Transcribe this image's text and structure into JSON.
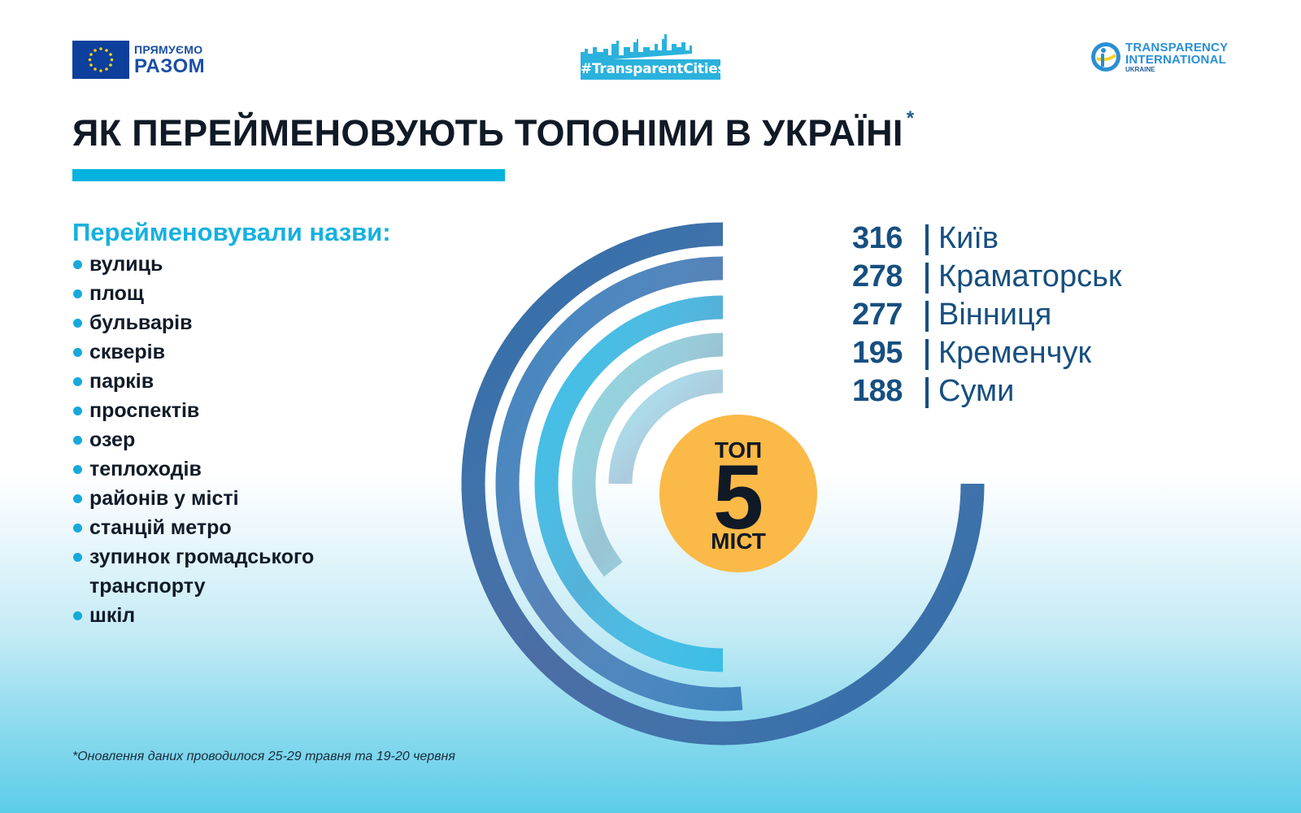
{
  "header": {
    "eu_logo": {
      "line1": "ПРЯМУЄМО",
      "line2": "РАЗОМ",
      "icon": "eu-flag-icon"
    },
    "tc_logo": {
      "tag": "#TransparentCities",
      "icon": "city-skyline-icon"
    },
    "ti_logo": {
      "line1": "TRANSPARENCY",
      "line2": "INTERNATIONAL",
      "line3": "UKRAINE",
      "icon": "ti-figure-icon"
    }
  },
  "title": {
    "text": "ЯК ПЕРЕЙМЕНОВУЮТЬ ТОПОНІМИ В УКРАЇНІ",
    "footnote_mark": "*"
  },
  "types": {
    "heading": "Перейменовували назви:",
    "items": [
      "вулиць",
      "площ",
      "бульварів",
      "скверів",
      "парків",
      "проспектів",
      "озер",
      "теплоходів",
      "районів у місті",
      "станцій метро",
      "зупинок громадського",
      "транспорту",
      "шкіл"
    ]
  },
  "badge": {
    "top": "ТОП",
    "number": "5",
    "bottom": "МІСТ"
  },
  "colors": {
    "accent": "#04b3df",
    "title": "#101a26",
    "legend": "#174f80",
    "badge": "#fbb947",
    "arcs": [
      "#2f6aa6",
      "#3f82bd",
      "#3bbde6",
      "#8fd3df",
      "#a6dceb"
    ]
  },
  "chart_data": {
    "type": "radial_bar",
    "title": "ТОП 5 МІСТ",
    "categories": [
      "Київ",
      "Краматорськ",
      "Вінниця",
      "Кременчук",
      "Суми"
    ],
    "values": [
      316,
      278,
      277,
      195,
      188
    ],
    "labels": [
      "316 | Київ",
      "278 | Краматорськ",
      "277 | Вінниця",
      "195 | Кременчук",
      "188 | Суми"
    ],
    "sweep_degrees": [
      270,
      185,
      180,
      128,
      90
    ],
    "legend_position": "right",
    "grid": false
  },
  "footnote": "*Оновлення даних проводилося 25-29 травня та 19-20 червня"
}
